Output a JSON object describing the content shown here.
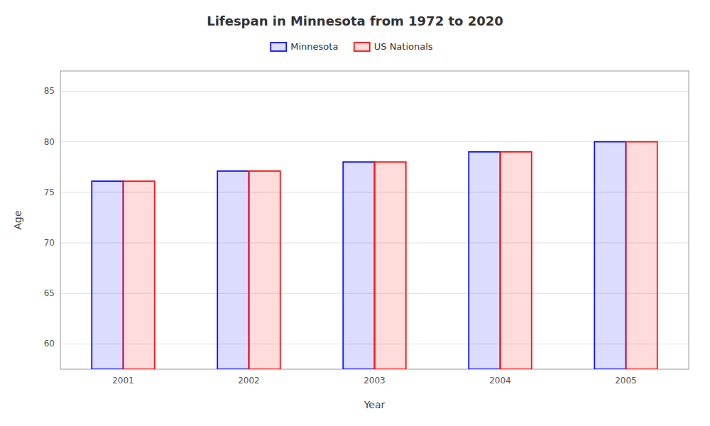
{
  "chart_data": {
    "type": "bar",
    "title": "Lifespan in Minnesota from 1972 to 2020",
    "x_label": "Year",
    "y_label": "Age",
    "categories": [
      "2001",
      "2002",
      "2003",
      "2004",
      "2005"
    ],
    "series": [
      {
        "name": "Minnesota",
        "color": "#1111ff",
        "values": [
          76.1,
          77.1,
          78.0,
          79.0,
          80.0
        ]
      },
      {
        "name": "US Nationals",
        "color": "#ff1111",
        "values": [
          76.1,
          77.1,
          78.0,
          79.0,
          80.0
        ]
      }
    ],
    "ylim": [
      57.5,
      87
    ],
    "yticks": [
      60,
      65,
      70,
      75,
      80,
      85
    ],
    "grid": true,
    "legend": "top"
  }
}
